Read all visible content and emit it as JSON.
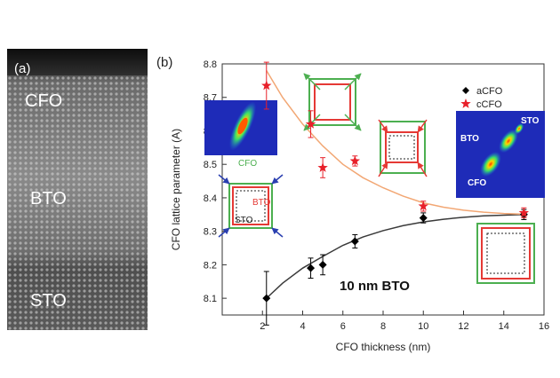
{
  "panel_a": {
    "label": "(a)",
    "layers": [
      {
        "name": "CFO"
      },
      {
        "name": "BTO"
      },
      {
        "name": "STO"
      }
    ]
  },
  "panel_b": {
    "label": "(b)",
    "annotation": "10 nm BTO",
    "inset_left": {
      "label_cfo": "CFO",
      "label_bto": "BTO",
      "label_sto": "STO"
    },
    "inset_right": {
      "label_sto": "STO",
      "label_bto": "BTO",
      "label_cfo": "CFO"
    },
    "colors": {
      "acfo": "#000000",
      "ccfo": "#e8202a",
      "fit_c": "#f2a774",
      "fit_a": "#3a3a3a",
      "box_green": "#4caf50",
      "box_red": "#e53935",
      "arrow_blue": "#2a3fb0"
    }
  },
  "chart_data": {
    "type": "scatter",
    "title": "",
    "xlabel": "CFO thickness (nm)",
    "ylabel": "CFO lattice parameter (A)",
    "xlim": [
      0,
      16
    ],
    "ylim": [
      8.05,
      8.8
    ],
    "xticks": [
      2,
      4,
      6,
      8,
      10,
      12,
      14,
      16
    ],
    "xtick_labels": [
      "2",
      "4",
      "6",
      "8",
      "10",
      "12",
      "14",
      "16"
    ],
    "yticks": [
      8.1,
      8.2,
      8.3,
      8.4,
      8.5,
      8.6,
      8.7,
      8.8
    ],
    "ytick_labels": [
      "8.1",
      "8.2",
      "8.3",
      "8.4",
      "8.5",
      "8.6",
      "8.7",
      "8.8"
    ],
    "legend_position": "top-right",
    "series": [
      {
        "name": "aCFO",
        "marker": "diamond",
        "x": [
          2.2,
          4.4,
          5.0,
          6.6,
          10.0,
          15.0
        ],
        "y": [
          8.1,
          8.19,
          8.2,
          8.27,
          8.34,
          8.35
        ],
        "err": [
          0.08,
          0.03,
          0.03,
          0.02,
          0.015,
          0.015
        ]
      },
      {
        "name": "cCFO",
        "marker": "star",
        "x": [
          2.2,
          4.4,
          5.0,
          6.6,
          10.0,
          15.0
        ],
        "y": [
          8.735,
          8.62,
          8.49,
          8.51,
          8.375,
          8.355
        ],
        "err": [
          0.07,
          0.04,
          0.03,
          0.015,
          0.015,
          0.015
        ]
      }
    ],
    "fits": [
      {
        "name": "aCFO fit",
        "x": [
          2.2,
          3,
          4,
          5,
          6,
          7,
          8,
          9,
          10,
          11,
          12,
          13,
          14,
          15
        ],
        "y": [
          8.1,
          8.145,
          8.19,
          8.225,
          8.258,
          8.283,
          8.302,
          8.317,
          8.328,
          8.336,
          8.342,
          8.346,
          8.348,
          8.35
        ]
      },
      {
        "name": "cCFO fit",
        "x": [
          2.2,
          3,
          4,
          5,
          6,
          7,
          8,
          9,
          10,
          11,
          12,
          13,
          14,
          15
        ],
        "y": [
          8.78,
          8.7,
          8.62,
          8.555,
          8.5,
          8.46,
          8.43,
          8.405,
          8.385,
          8.372,
          8.363,
          8.357,
          8.353,
          8.351
        ]
      }
    ]
  }
}
